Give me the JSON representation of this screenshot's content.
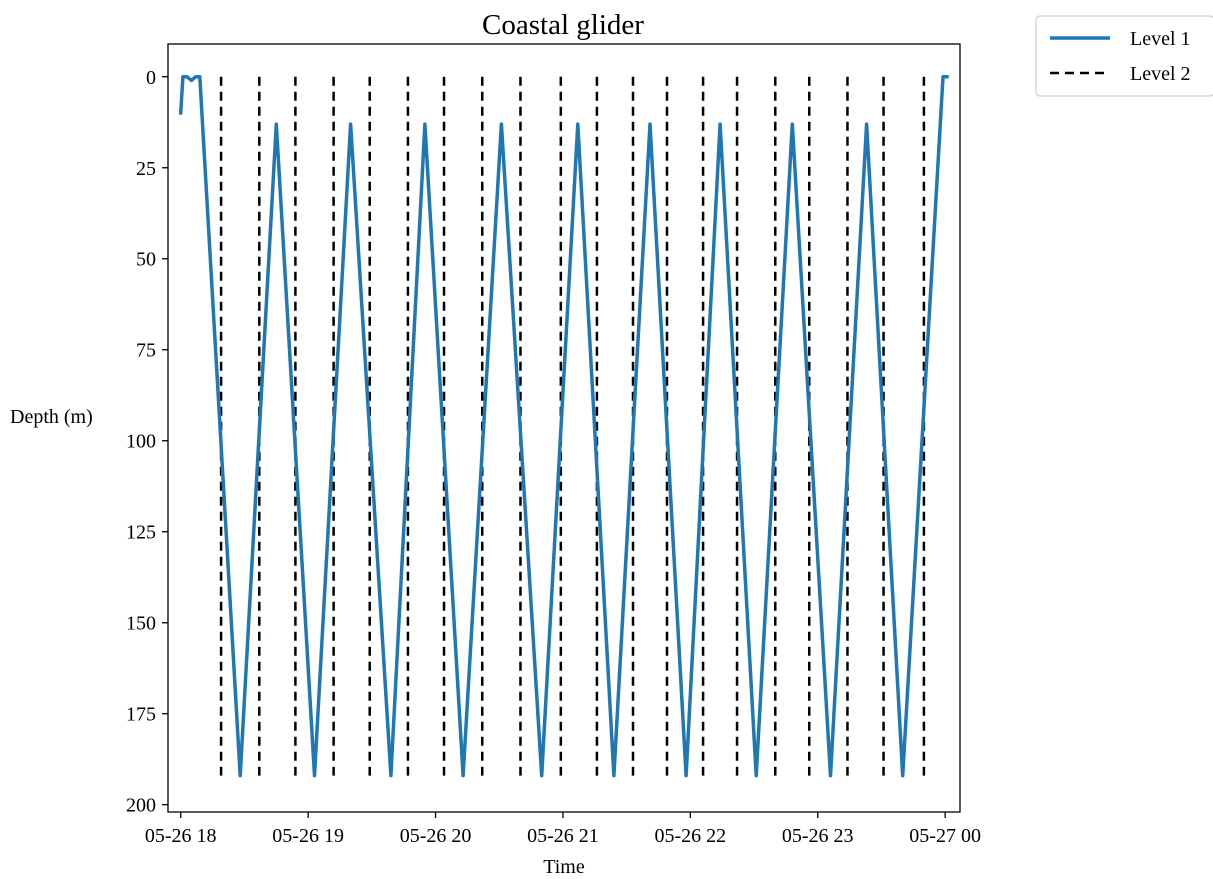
{
  "chart_data": {
    "type": "line",
    "title": "Coastal glider",
    "xlabel": "Time",
    "ylabel": "Depth (m)",
    "x_axis": {
      "type": "datetime",
      "range": [
        "2023-05-26T17:54",
        "2023-05-27T00:07"
      ],
      "ticks": [
        "2023-05-26T18:00",
        "2023-05-26T19:00",
        "2023-05-26T20:00",
        "2023-05-26T21:00",
        "2023-05-26T22:00",
        "2023-05-26T23:00",
        "2023-05-27T00:00"
      ],
      "tick_labels": [
        "05-26 18",
        "05-26 19",
        "05-26 20",
        "05-26 21",
        "05-26 22",
        "05-26 23",
        "05-27 00"
      ]
    },
    "y_axis": {
      "inverted": true,
      "range": [
        202,
        -9
      ],
      "ticks": [
        0,
        25,
        50,
        75,
        100,
        125,
        150,
        175,
        200
      ],
      "tick_labels": [
        "0",
        "25",
        "50",
        "75",
        "100",
        "125",
        "150",
        "175",
        "200"
      ]
    },
    "grid": false,
    "legend": {
      "placement": "outside-top-right",
      "entries": [
        "Level 1",
        "Level 2"
      ]
    },
    "series": [
      {
        "name": "Level 1",
        "style": "solid",
        "color": "#1f77b4",
        "points": [
          [
            "2023-05-26T18:00",
            10
          ],
          [
            "2023-05-26T18:01",
            0
          ],
          [
            "2023-05-26T18:03",
            0
          ],
          [
            "2023-05-26T18:05",
            1
          ],
          [
            "2023-05-26T18:07",
            0
          ],
          [
            "2023-05-26T18:09",
            0
          ],
          [
            "2023-05-26T18:28",
            192
          ],
          [
            "2023-05-26T18:45",
            13
          ],
          [
            "2023-05-26T19:03",
            192
          ],
          [
            "2023-05-26T19:20",
            13
          ],
          [
            "2023-05-26T19:39",
            192
          ],
          [
            "2023-05-26T19:55",
            13
          ],
          [
            "2023-05-26T20:13",
            192
          ],
          [
            "2023-05-26T20:31",
            13
          ],
          [
            "2023-05-26T20:50",
            192
          ],
          [
            "2023-05-26T21:07",
            13
          ],
          [
            "2023-05-26T21:24",
            192
          ],
          [
            "2023-05-26T21:41",
            13
          ],
          [
            "2023-05-26T21:58",
            192
          ],
          [
            "2023-05-26T22:14",
            13
          ],
          [
            "2023-05-26T22:31",
            192
          ],
          [
            "2023-05-26T22:48",
            13
          ],
          [
            "2023-05-26T23:06",
            192
          ],
          [
            "2023-05-26T23:23",
            13
          ],
          [
            "2023-05-26T23:40",
            192
          ],
          [
            "2023-05-26T23:59",
            0
          ],
          [
            "2023-05-27T00:01",
            0
          ]
        ]
      },
      {
        "name": "Level 2",
        "style": "dashed",
        "color": "#000000",
        "vertical_segments": {
          "depth_range": [
            0,
            192
          ],
          "times": [
            "2023-05-26T18:19",
            "2023-05-26T18:37",
            "2023-05-26T18:54",
            "2023-05-26T19:12",
            "2023-05-26T19:29",
            "2023-05-26T19:47",
            "2023-05-26T20:04",
            "2023-05-26T20:22",
            "2023-05-26T20:40",
            "2023-05-26T20:59",
            "2023-05-26T21:16",
            "2023-05-26T21:33",
            "2023-05-26T21:49",
            "2023-05-26T22:06",
            "2023-05-26T22:22",
            "2023-05-26T22:40",
            "2023-05-26T22:56",
            "2023-05-26T23:14",
            "2023-05-26T23:31",
            "2023-05-26T23:50"
          ]
        }
      }
    ]
  }
}
